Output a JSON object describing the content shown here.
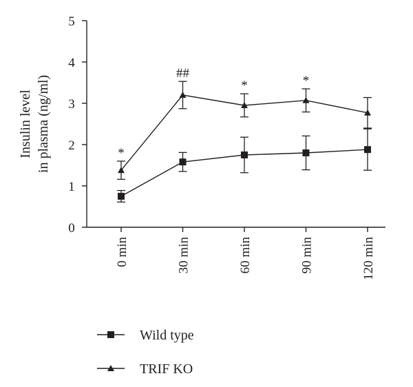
{
  "chart_data": {
    "type": "line",
    "title": "",
    "xlabel": "",
    "ylabel_lines": [
      "Insulin level",
      "in plasma (ng/ml)"
    ],
    "categories": [
      "0 min",
      "30 min",
      "60 min",
      "90 min",
      "120 min"
    ],
    "ylim": [
      0,
      5
    ],
    "yticks": [
      0,
      1,
      2,
      3,
      4,
      5
    ],
    "grid": false,
    "legend_position": "bottom-left",
    "series": [
      {
        "name": "Wild type",
        "marker": "square",
        "values": [
          0.75,
          1.58,
          1.75,
          1.8,
          1.88
        ],
        "errors": [
          0.14,
          0.23,
          0.43,
          0.41,
          0.5
        ]
      },
      {
        "name": "TRIF KO",
        "marker": "triangle",
        "values": [
          1.38,
          3.2,
          2.95,
          3.07,
          2.77
        ],
        "errors": [
          0.22,
          0.33,
          0.28,
          0.28,
          0.37
        ]
      }
    ],
    "annotations": [
      {
        "category": "0 min",
        "text": "*"
      },
      {
        "category": "30 min",
        "text": "##"
      },
      {
        "category": "60 min",
        "text": "*"
      },
      {
        "category": "90 min",
        "text": "*"
      }
    ],
    "colors": {
      "ink": "#231f20",
      "background": "#ffffff"
    }
  }
}
